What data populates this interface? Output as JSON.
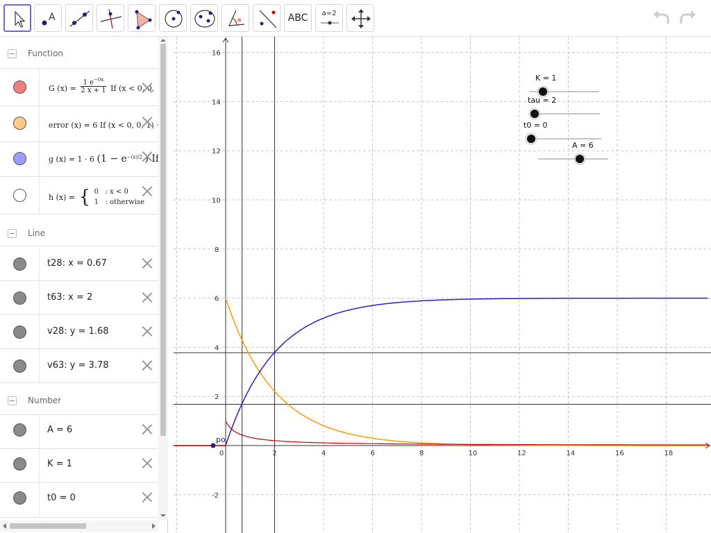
{
  "toolbar": {
    "text_tool": "ABC",
    "slider_tool": "a=2"
  },
  "algebra": {
    "groups": {
      "function": "Function",
      "line": "Line",
      "number": "Number"
    },
    "functions": [
      {
        "name": "G",
        "color": "#f08080",
        "formula": "G(x) = 1e^{−0x} / (2x+1)  If (x < 0, 0,",
        "lhs": "G (x) =",
        "num": "1 e",
        "num_exp": "−0x",
        "den": "2 x + 1",
        "tail": "If (x < 0, 0,"
      },
      {
        "name": "error",
        "color": "#ffc98a",
        "lhs": "error (x) = 6 If (x < 0, 0, 1) ·"
      },
      {
        "name": "g",
        "color": "#9f9cff",
        "lhs": "g (x) = 1 · 6",
        "paren": "(1 − e",
        "exp": "−(x)/2",
        "tail": ") If ("
      },
      {
        "name": "h",
        "color": "#ffffff",
        "lhs": "h (x) =",
        "case1_val": "0",
        "case1_cond": ": x < 0",
        "case2_val": "1",
        "case2_cond": ": otherwise"
      }
    ],
    "lines": [
      {
        "label": "t28: x = 0.67"
      },
      {
        "label": "t63: x = 2"
      },
      {
        "label": "v28: y = 1.68"
      },
      {
        "label": "v63: y = 3.78"
      }
    ],
    "numbers": [
      {
        "label": "A = 6"
      },
      {
        "label": "K = 1"
      },
      {
        "label": "t0 = 0"
      }
    ]
  },
  "graphics": {
    "x_ticks": [
      "0",
      "2",
      "4",
      "6",
      "8",
      "10",
      "12",
      "14",
      "16",
      "18"
    ],
    "y_ticks": [
      "-2",
      "2",
      "4",
      "6",
      "8",
      "10",
      "12",
      "14",
      "16"
    ],
    "point_label": "po",
    "sliders": [
      {
        "label": "K = 1",
        "value": 1
      },
      {
        "label": "tau = 2",
        "value": 2
      },
      {
        "label": "t0 = 0",
        "value": 0
      },
      {
        "label": "A = 6",
        "value": 6
      }
    ],
    "colors": {
      "G": "#cc0000",
      "error": "#ff9900",
      "g": "#2b1bd6",
      "lines": "#333333"
    }
  },
  "chart_data": {
    "type": "line",
    "xlim": [
      -2.1,
      19.7
    ],
    "ylim": [
      -3.5,
      16.8
    ],
    "grid": true,
    "series": [
      {
        "name": "G",
        "x": [
          0,
          0.5,
          1,
          2,
          4,
          6,
          10,
          19.7
        ],
        "y": [
          1,
          0.5,
          0.33,
          0.2,
          0.11,
          0.077,
          0.048,
          0.025
        ]
      },
      {
        "name": "error",
        "x": [
          0,
          1,
          2,
          3,
          4,
          6,
          8,
          10,
          12,
          19.7
        ],
        "y": [
          6,
          3.64,
          2.21,
          1.34,
          0.81,
          0.3,
          0.11,
          0.04,
          0.015,
          0
        ]
      },
      {
        "name": "g",
        "x": [
          0,
          0.67,
          1,
          2,
          3,
          4,
          6,
          8,
          10,
          12,
          19.7
        ],
        "y": [
          0,
          1.68,
          2.36,
          3.79,
          4.66,
          5.19,
          5.7,
          5.89,
          5.96,
          5.99,
          6
        ]
      },
      {
        "name": "h",
        "x": [
          -2.1,
          0,
          0,
          19.7
        ],
        "y": [
          0,
          0,
          1,
          1
        ]
      }
    ],
    "vertical_lines": [
      0.67,
      2
    ],
    "horizontal_lines": [
      1.68,
      3.78
    ]
  }
}
